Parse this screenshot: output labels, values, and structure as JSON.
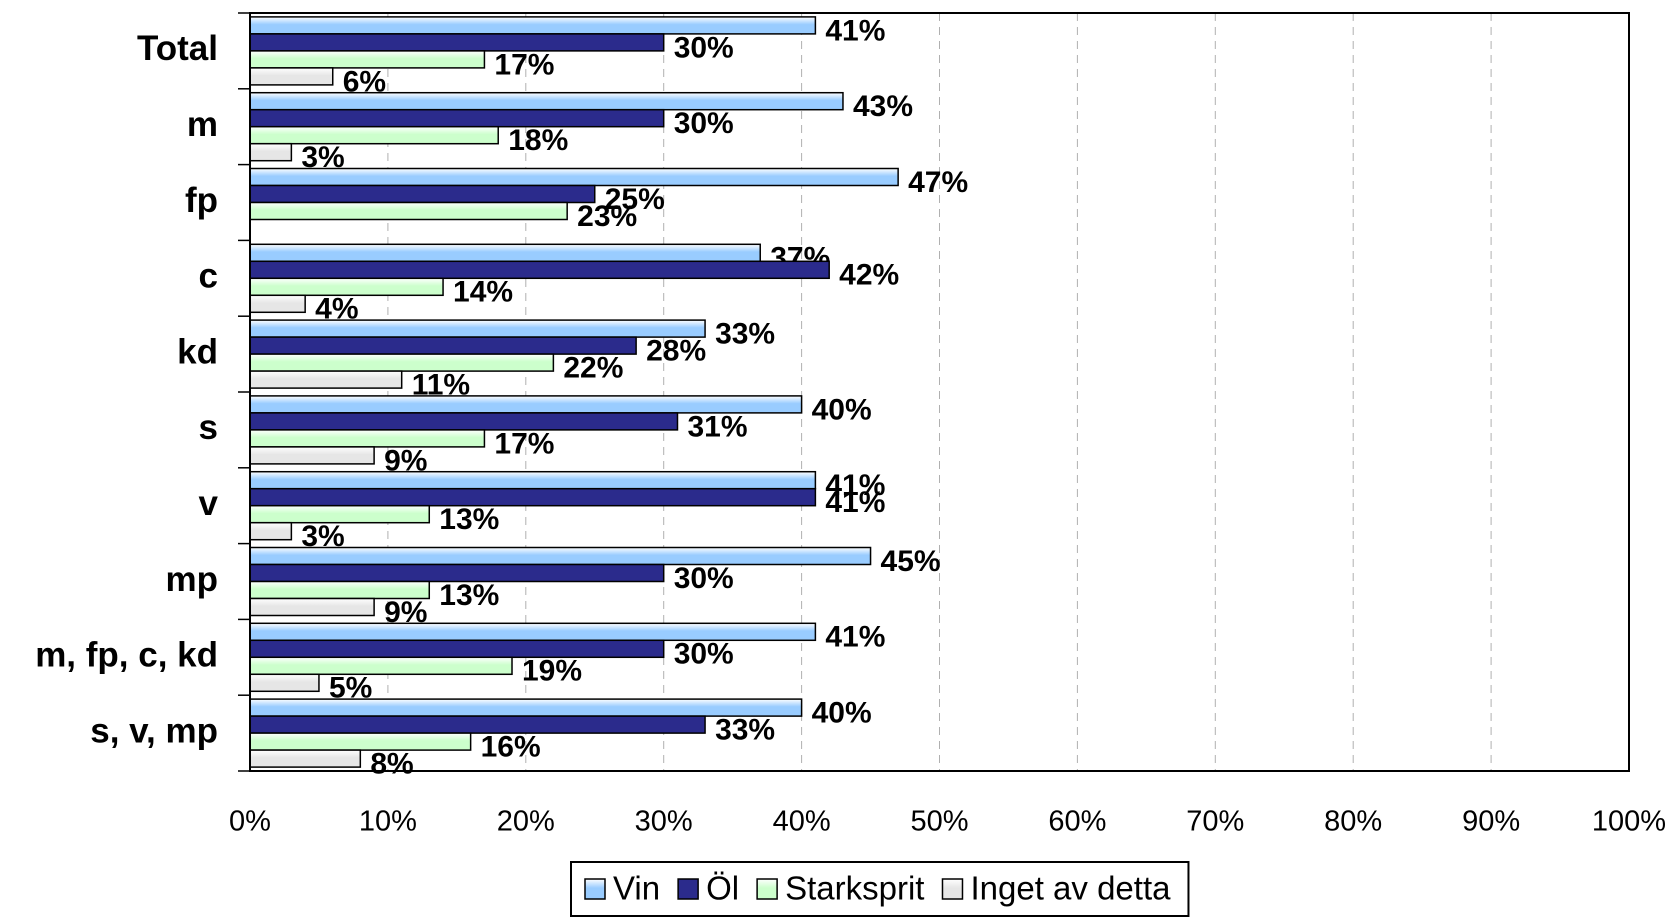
{
  "chart_data": {
    "type": "bar",
    "orientation": "horizontal",
    "categories": [
      "Total",
      "m",
      "fp",
      "c",
      "kd",
      "s",
      "v",
      "mp",
      "m, fp, c, kd",
      "s, v, mp"
    ],
    "series": [
      {
        "name": "Vin",
        "color": "#99ccff",
        "values": [
          41,
          43,
          47,
          37,
          33,
          40,
          41,
          45,
          41,
          40
        ],
        "value_labels": [
          "41%",
          "43%",
          "47%",
          "37%",
          "33%",
          "40%",
          "41%",
          "45%",
          "41%",
          "40%"
        ]
      },
      {
        "name": "Öl",
        "color": "#2b2b8c",
        "values": [
          30,
          30,
          25,
          42,
          28,
          31,
          41,
          30,
          30,
          33
        ],
        "value_labels": [
          "30%",
          "30%",
          "25%",
          "42%",
          "28%",
          "31%",
          "41%",
          "30%",
          "30%",
          "33%"
        ]
      },
      {
        "name": "Starksprit",
        "color": "#ccffcc",
        "values": [
          17,
          18,
          23,
          14,
          22,
          17,
          13,
          13,
          19,
          16
        ],
        "value_labels": [
          "17%",
          "18%",
          "23%",
          "14%",
          "22%",
          "17%",
          "13%",
          "13%",
          "19%",
          "16%"
        ]
      },
      {
        "name": "Inget av detta",
        "color": "#e6e6e6",
        "values": [
          6,
          3,
          null,
          4,
          11,
          9,
          3,
          9,
          5,
          8
        ],
        "value_labels": [
          "6%",
          "3%",
          null,
          "4%",
          "11%",
          "9%",
          "3%",
          "9%",
          "5%",
          "8%"
        ]
      }
    ],
    "xlim": [
      0,
      100
    ],
    "xticks": [
      {
        "value": 0,
        "label": "0%"
      },
      {
        "value": 10,
        "label": "10%"
      },
      {
        "value": 20,
        "label": "20%"
      },
      {
        "value": 30,
        "label": "30%"
      },
      {
        "value": 40,
        "label": "40%"
      },
      {
        "value": 50,
        "label": "50%"
      },
      {
        "value": 60,
        "label": "60%"
      },
      {
        "value": 70,
        "label": "70%"
      },
      {
        "value": 80,
        "label": "80%"
      },
      {
        "value": 90,
        "label": "90%"
      },
      {
        "value": 100,
        "label": "100%"
      }
    ],
    "grid": true,
    "legend": "bottom"
  }
}
